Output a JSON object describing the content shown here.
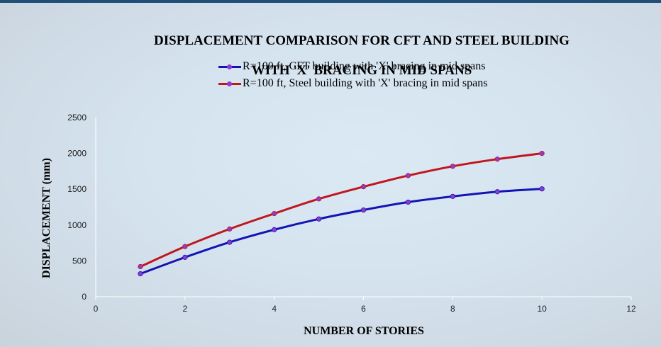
{
  "chart_data": {
    "type": "line",
    "title": [
      "DISPLACEMENT COMPARISON  FOR CFT AND STEEL BUILDING",
      "WITH 'X' BRACING IN MID SPANS"
    ],
    "xlabel": "NUMBER OF STORIES",
    "ylabel": "DISPLACEMENT (mm)",
    "xlim": [
      0,
      12
    ],
    "ylim": [
      0,
      2500
    ],
    "xticks": [
      0,
      2,
      4,
      6,
      8,
      10,
      12
    ],
    "yticks": [
      0,
      500,
      1000,
      1500,
      2000,
      2500
    ],
    "grid": false,
    "legend_position": "top",
    "x": [
      1,
      2,
      3,
      4,
      5,
      6,
      7,
      8,
      9,
      10
    ],
    "series": [
      {
        "name": "R=100 ft, CFT building with 'X' bracing in mid spans",
        "color": "#1414b4",
        "values": [
          320,
          550,
          760,
          935,
          1085,
          1210,
          1320,
          1400,
          1465,
          1505
        ]
      },
      {
        "name": "R=100 ft, Steel building with 'X' bracing in mid spans",
        "color": "#c0161e",
        "values": [
          420,
          700,
          945,
          1160,
          1365,
          1535,
          1690,
          1820,
          1920,
          2000
        ]
      }
    ],
    "marker_color": "#8e3bd0"
  }
}
